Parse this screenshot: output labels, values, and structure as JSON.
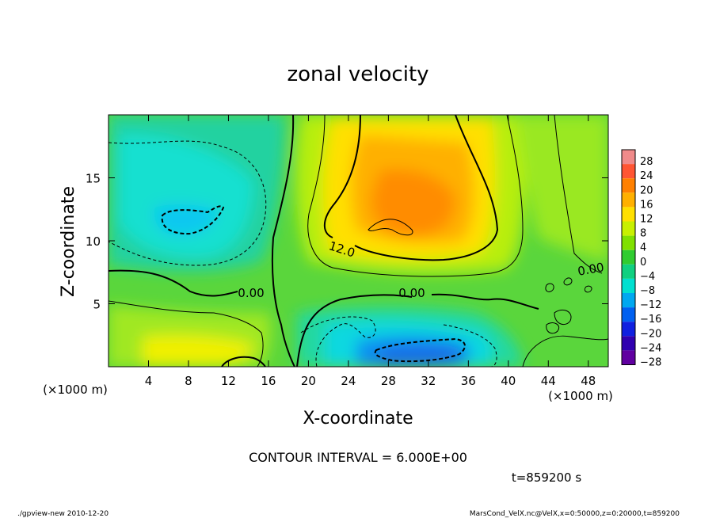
{
  "chart_data": {
    "type": "heatmap",
    "title": "zonal velocity",
    "xlabel": "X-coordinate",
    "ylabel": "Z-coordinate",
    "x_unit_label": "(×1000 m)",
    "y_unit_label": "(×1000 m)",
    "xlim": [
      0,
      50
    ],
    "ylim": [
      0,
      20
    ],
    "x_ticks": [
      4,
      8,
      12,
      16,
      20,
      24,
      28,
      32,
      36,
      40,
      44,
      48
    ],
    "y_ticks": [
      5,
      10,
      15
    ],
    "colorbar": {
      "levels": [
        28,
        24,
        20,
        16,
        12,
        8,
        4,
        0,
        -4,
        -8,
        -12,
        -16,
        -20,
        -24,
        -28
      ],
      "colors": [
        "#f08a8a",
        "#ff5533",
        "#ff8000",
        "#ffb000",
        "#ffe000",
        "#c8f000",
        "#80e000",
        "#30cc30",
        "#10d080",
        "#00e0d0",
        "#00a8f0",
        "#0060f0",
        "#1020e0",
        "#3000b0",
        "#6000a0"
      ]
    },
    "contour_labels": [
      {
        "text": "12.0",
        "x": 23,
        "z": 9.5
      },
      {
        "text": "0.00",
        "x": 14.5,
        "z": 5.9
      },
      {
        "text": "0.00",
        "x": 30.5,
        "z": 5.9
      },
      {
        "text": "0.00",
        "x": 48,
        "z": 7.8
      }
    ],
    "features": [
      {
        "kind": "maximum",
        "value": 18,
        "x": 29,
        "z": 11
      },
      {
        "kind": "minimum",
        "value": -12,
        "x": 8,
        "z": 11.5
      },
      {
        "kind": "minimum",
        "value": -16,
        "x": 29,
        "z": 1
      }
    ],
    "contour_interval_text": "CONTOUR INTERVAL = 6.000E+00"
  },
  "time_label": "t=859200 s",
  "footer": {
    "left": "./gpview-new  2010-12-20",
    "right": "MarsCond_VelX.nc@VelX,x=0:50000,z=0:20000,t=859200"
  }
}
